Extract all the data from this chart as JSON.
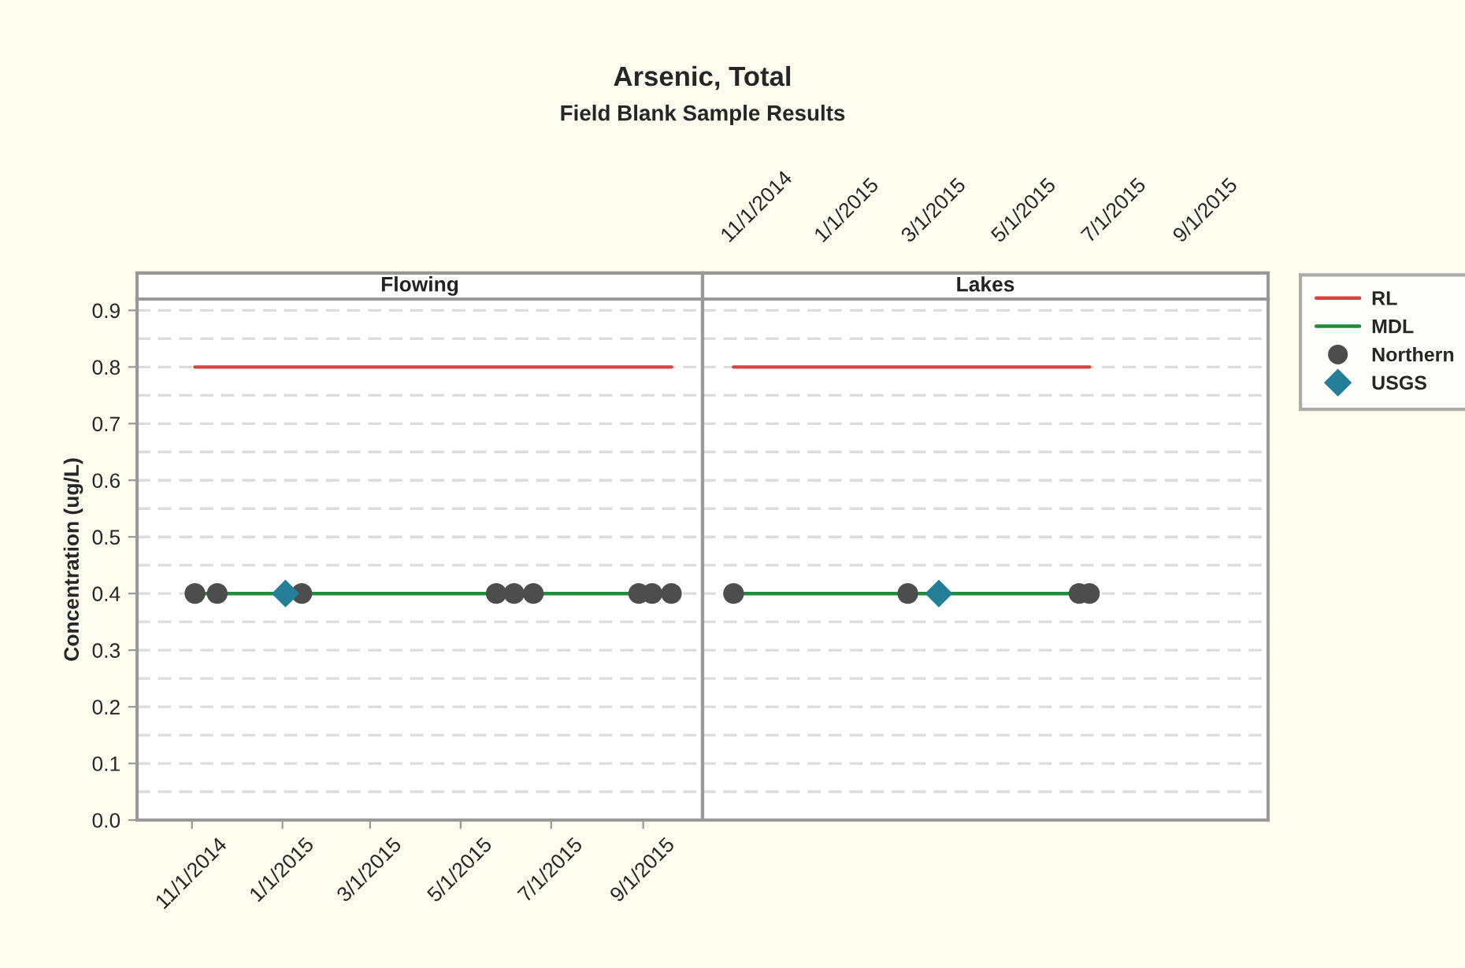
{
  "chart_data": [
    {
      "type": "scatter",
      "title": "Arsenic, Total",
      "subtitle": "Field Blank Sample Results",
      "ylabel": "Concentration (ug/L)",
      "annotations": [
        "Flowing"
      ],
      "legend": "right",
      "xlim": [
        "2014-09-25",
        "2015-10-11"
      ],
      "xticks": [
        {
          "value": "2014-11-01",
          "label": "11/1/2014"
        },
        {
          "value": "2015-01-01",
          "label": "1/1/2015"
        },
        {
          "value": "2015-03-01",
          "label": "3/1/2015"
        },
        {
          "value": "2015-05-01",
          "label": "5/1/2015"
        },
        {
          "value": "2015-07-01",
          "label": "7/1/2015"
        },
        {
          "value": "2015-09-01",
          "label": "9/1/2015"
        }
      ],
      "ylim": [
        0,
        0.92
      ],
      "yticks": [
        {
          "value": 0,
          "label": "0.0"
        },
        0.1,
        0.2,
        0.3,
        0.4,
        0.5,
        0.6,
        0.7,
        0.8,
        0.9
      ],
      "grid": "y",
      "series": [
        {
          "name": "RL",
          "type": "line",
          "color": "#d9443f",
          "x": [
            "2014-11-03",
            "2015-09-20"
          ],
          "values": [
            0.8,
            0.8
          ]
        },
        {
          "name": "MDL",
          "type": "line",
          "color": "#1e8c3a",
          "x": [
            "2014-11-03",
            "2015-09-20"
          ],
          "values": [
            0.4,
            0.4
          ]
        },
        {
          "name": "Northern",
          "marker": "circle",
          "color": "#4d4d4d",
          "x": [
            "2014-11-03",
            "2014-11-18",
            "2015-01-14",
            "2015-05-25",
            "2015-06-06",
            "2015-06-19",
            "2015-08-29",
            "2015-09-07",
            "2015-09-20"
          ],
          "values": [
            0.4,
            0.4,
            0.4,
            0.4,
            0.4,
            0.4,
            0.4,
            0.4,
            0.4
          ]
        },
        {
          "name": "USGS",
          "marker": "diamond",
          "color": "#237e98",
          "x": [
            "2015-01-03"
          ],
          "values": [
            0.4
          ]
        }
      ]
    },
    {
      "type": "scatter",
      "annotations": [
        "Lakes"
      ],
      "tick_labels": "x",
      "xlim": [
        "2014-09-25",
        "2015-10-13"
      ],
      "xticks": [
        {
          "value": "2014-11-01",
          "label": "11/1/2014"
        },
        {
          "value": "2015-01-01",
          "label": "1/1/2015"
        },
        {
          "value": "2015-03-01",
          "label": "3/1/2015"
        },
        {
          "value": "2015-05-01",
          "label": "5/1/2015"
        },
        {
          "value": "2015-07-01",
          "label": "7/1/2015"
        },
        {
          "value": "2015-09-01",
          "label": "9/1/2015"
        }
      ],
      "ylim": [
        0,
        0.92
      ],
      "yticks": [
        0,
        0.1,
        0.2,
        0.3,
        0.4,
        0.5,
        0.6,
        0.7,
        0.8,
        0.9
      ],
      "grid": "y",
      "series": [
        {
          "type": "line",
          "color": "#d9443f",
          "x": [
            "2014-10-16",
            "2015-06-14"
          ],
          "values": [
            0.8,
            0.8
          ]
        },
        {
          "type": "line",
          "color": "#1e8c3a",
          "x": [
            "2014-10-16",
            "2015-06-14"
          ],
          "values": [
            0.4,
            0.4
          ]
        },
        {
          "marker": "circle",
          "color": "#4d4d4d",
          "x": [
            "2014-10-16",
            "2015-02-11",
            "2015-06-07",
            "2015-06-14"
          ],
          "values": [
            0.4,
            0.4,
            0.4,
            0.4
          ]
        },
        {
          "marker": "diamond",
          "color": "#237e98",
          "x": [
            "2015-03-04"
          ],
          "values": [
            0.4
          ]
        }
      ]
    }
  ]
}
